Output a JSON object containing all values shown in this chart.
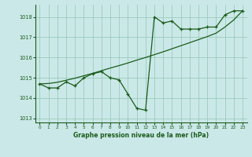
{
  "title": "Graphe pression niveau de la mer (hPa)",
  "background_color": "#cbe8e8",
  "plot_bg_color": "#cbe8e8",
  "line_color": "#1a5c1a",
  "grid_color": "#99ccbb",
  "xlim": [
    -0.5,
    23.5
  ],
  "ylim": [
    1012.8,
    1018.6
  ],
  "yticks": [
    1013,
    1014,
    1015,
    1016,
    1017,
    1018
  ],
  "xticks": [
    0,
    1,
    2,
    3,
    4,
    5,
    6,
    7,
    8,
    9,
    10,
    11,
    12,
    13,
    14,
    15,
    16,
    17,
    18,
    19,
    20,
    21,
    22,
    23
  ],
  "hours": [
    0,
    1,
    2,
    3,
    4,
    5,
    6,
    7,
    8,
    9,
    10,
    11,
    12,
    13,
    14,
    15,
    16,
    17,
    18,
    19,
    20,
    21,
    22,
    23
  ],
  "pressure_raw": [
    1014.7,
    1014.5,
    1014.5,
    1014.8,
    1014.6,
    1015.0,
    1015.2,
    1015.3,
    1015.0,
    1014.9,
    1014.2,
    1013.5,
    1013.4,
    1018.0,
    1017.7,
    1017.8,
    1017.4,
    1017.4,
    1017.4,
    1017.5,
    1017.5,
    1018.1,
    1018.3,
    1018.3
  ],
  "pressure_smooth": [
    1014.7,
    1014.72,
    1014.78,
    1014.88,
    1014.98,
    1015.1,
    1015.22,
    1015.35,
    1015.48,
    1015.6,
    1015.73,
    1015.87,
    1016.0,
    1016.14,
    1016.28,
    1016.43,
    1016.58,
    1016.73,
    1016.88,
    1017.03,
    1017.2,
    1017.5,
    1017.85,
    1018.3
  ],
  "figwidth": 3.2,
  "figheight": 2.0,
  "dpi": 100
}
